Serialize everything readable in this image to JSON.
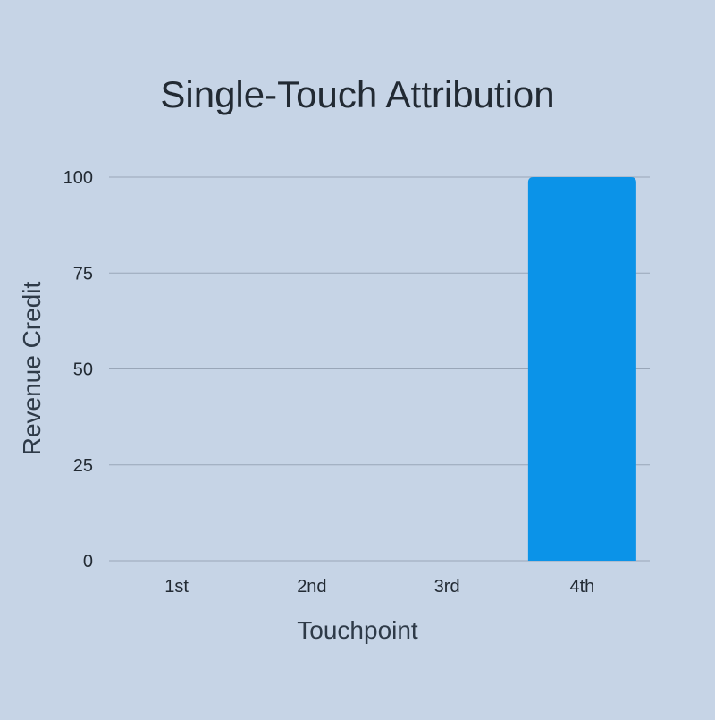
{
  "colors": {
    "background": "#c6d4e6",
    "bar": "#0b93e8",
    "gridline": "#99a6b8",
    "text": "#222a33"
  },
  "chart_data": {
    "type": "bar",
    "title": "Single-Touch Attribution",
    "xlabel": "Touchpoint",
    "ylabel": "Revenue Credit",
    "categories": [
      "1st",
      "2nd",
      "3rd",
      "4th"
    ],
    "values": [
      0,
      0,
      0,
      100
    ],
    "ylim": [
      0,
      100
    ],
    "yticks": [
      "0",
      "25",
      "50",
      "75",
      "100"
    ],
    "grid": true,
    "legend": "none"
  }
}
